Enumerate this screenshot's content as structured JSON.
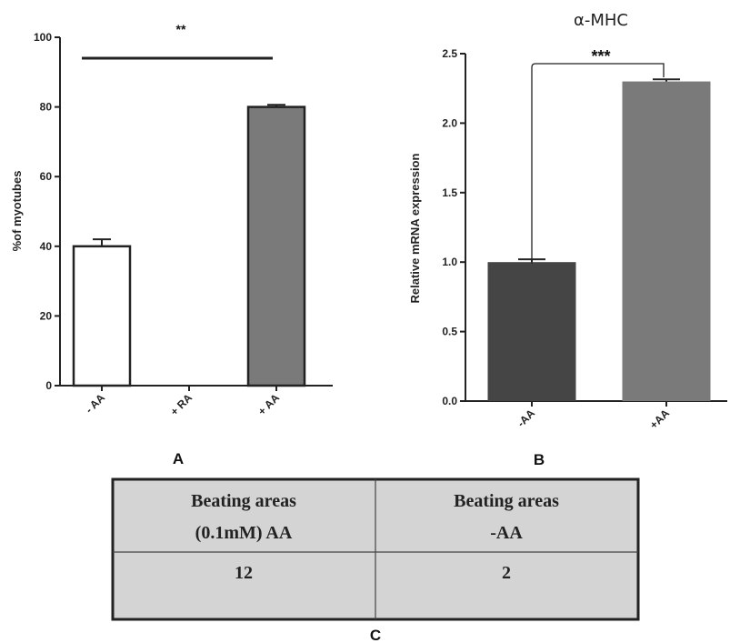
{
  "chart_data": [
    {
      "type": "bar",
      "panel_label": "A",
      "title": "",
      "ylabel": "%of myotubes",
      "categories": [
        "- AA",
        "+ RA",
        "+ AA"
      ],
      "values": [
        40,
        0,
        80
      ],
      "errors": [
        2,
        0,
        0.6
      ],
      "colors": [
        "#ffffff",
        "#ffffff",
        "#7a7a7a"
      ],
      "ylim": [
        0,
        100
      ],
      "yticks": [
        "0",
        "20",
        "40",
        "60",
        "80",
        "100"
      ],
      "significance": {
        "label": "**",
        "from": "- AA",
        "to": "+ AA"
      }
    },
    {
      "type": "bar",
      "panel_label": "B",
      "title": "α-MHC",
      "ylabel": "Relative mRNA expression",
      "categories": [
        "-AA",
        "+AA"
      ],
      "values": [
        1.0,
        2.3
      ],
      "errors": [
        0.02,
        0.015
      ],
      "colors": [
        "#454545",
        "#7a7a7a"
      ],
      "ylim": [
        0,
        2.5
      ],
      "yticks": [
        "0.0",
        "0.5",
        "1.0",
        "1.5",
        "2.0",
        "2.5"
      ],
      "significance": {
        "label": "***",
        "from": "-AA",
        "to": "+AA"
      }
    },
    {
      "type": "table",
      "panel_label": "C",
      "header": [
        {
          "line1": "Beating areas",
          "line2": "(0.1mM) AA"
        },
        {
          "line1": "Beating areas",
          "line2": "-AA"
        }
      ],
      "rows": [
        [
          "12",
          "2"
        ]
      ]
    }
  ]
}
